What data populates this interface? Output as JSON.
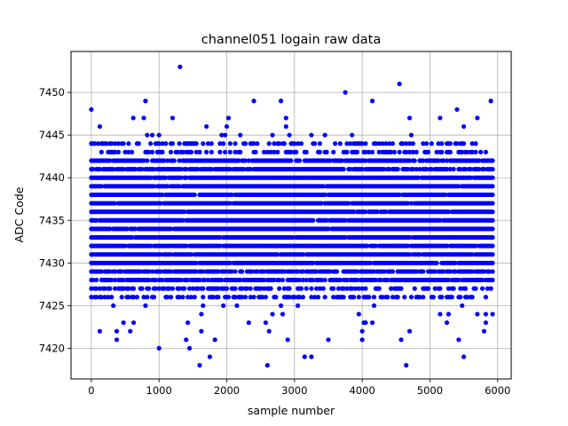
{
  "chart_data": {
    "type": "scatter",
    "title": "channel051 logain raw data",
    "xlabel": "sample number",
    "ylabel": "ADC Code",
    "xlim": [
      -300,
      6200
    ],
    "ylim": [
      7416.4,
      7454.8
    ],
    "xticks": [
      0,
      1000,
      2000,
      3000,
      4000,
      5000,
      6000
    ],
    "yticks": [
      7420,
      7425,
      7430,
      7435,
      7440,
      7445,
      7450
    ],
    "grid": true,
    "legend": "none",
    "marker_color": "#0000ff",
    "series": [
      {
        "x_start": 0,
        "x_end": 5925,
        "x_step": 25,
        "dense_band": [
          7426,
          7444
        ],
        "outliers": [
          [
            0,
            7448
          ],
          [
            620,
            7447
          ],
          [
            800,
            7449
          ],
          [
            1000,
            7420
          ],
          [
            1310,
            7453
          ],
          [
            1450,
            7420
          ],
          [
            1600,
            7418
          ],
          [
            1750,
            7419
          ],
          [
            2400,
            7449
          ],
          [
            2600,
            7418
          ],
          [
            2800,
            7449
          ],
          [
            3150,
            7419
          ],
          [
            3250,
            7419
          ],
          [
            3750,
            7450
          ],
          [
            4000,
            7421
          ],
          [
            4150,
            7449
          ],
          [
            4550,
            7451
          ],
          [
            4650,
            7418
          ],
          [
            5400,
            7448
          ],
          [
            5500,
            7419
          ],
          [
            5900,
            7449
          ]
        ]
      }
    ]
  }
}
